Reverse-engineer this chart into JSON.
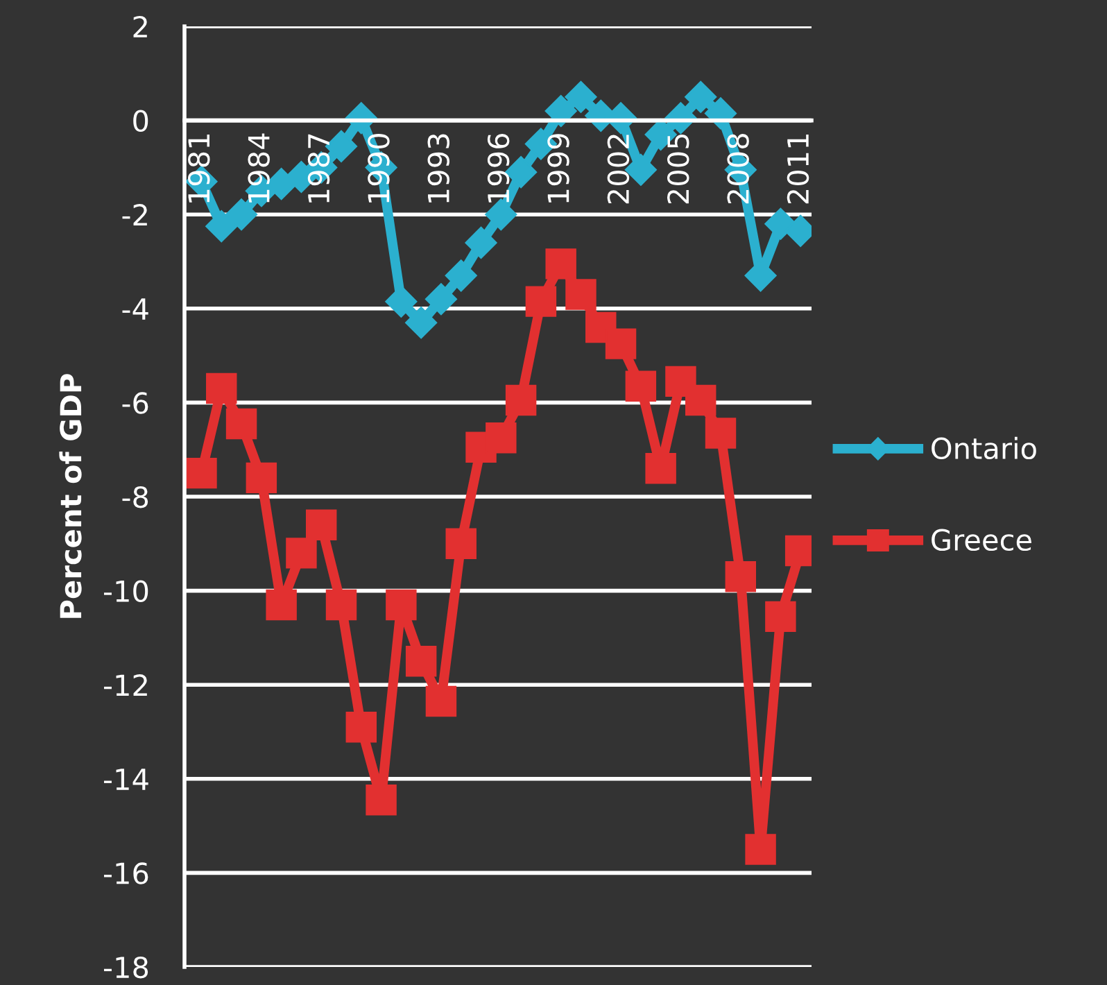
{
  "chart_data": {
    "type": "line",
    "ylabel": "Percent of GDP",
    "categories": [
      "1981",
      null,
      null,
      "1984",
      null,
      null,
      "1987",
      null,
      null,
      "1990",
      null,
      null,
      "1993",
      null,
      null,
      "1996",
      null,
      null,
      "1999",
      null,
      null,
      "2002",
      null,
      null,
      "2005",
      null,
      null,
      "2008",
      null,
      null,
      "2011"
    ],
    "series": [
      {
        "name": "Ontario",
        "color": "#2bb0cf",
        "marker": "diamond",
        "values": [
          -1.3,
          -2.25,
          -2.0,
          -1.5,
          -1.35,
          -1.2,
          -1.0,
          -0.55,
          0.05,
          -1.0,
          -3.85,
          -4.3,
          -3.8,
          -3.3,
          -2.6,
          -2.0,
          -1.1,
          -0.5,
          0.2,
          0.5,
          0.1,
          0.05,
          -1.05,
          -0.3,
          0.05,
          0.5,
          0.15,
          -1.05,
          -3.3,
          -2.2,
          -2.35
        ]
      },
      {
        "name": "Greece",
        "color": "#e23030",
        "marker": "square",
        "values": [
          -7.5,
          -5.7,
          -6.45,
          -7.6,
          -10.3,
          -9.2,
          -8.6,
          -10.3,
          -12.9,
          -14.45,
          -10.3,
          -11.5,
          -12.35,
          -9.0,
          -6.95,
          -6.75,
          -5.95,
          -3.85,
          -3.05,
          -3.7,
          -4.4,
          -4.75,
          -5.65,
          -7.4,
          -5.55,
          -5.95,
          -6.65,
          -9.7,
          -15.5,
          -10.55,
          -9.15
        ]
      }
    ],
    "ylim": [
      -18,
      2
    ],
    "yticks": [
      -18,
      -16,
      -14,
      -12,
      -10,
      -8,
      -6,
      -4,
      -2,
      0,
      2
    ],
    "grid": "y",
    "legend": "right",
    "line_style": "solid"
  }
}
